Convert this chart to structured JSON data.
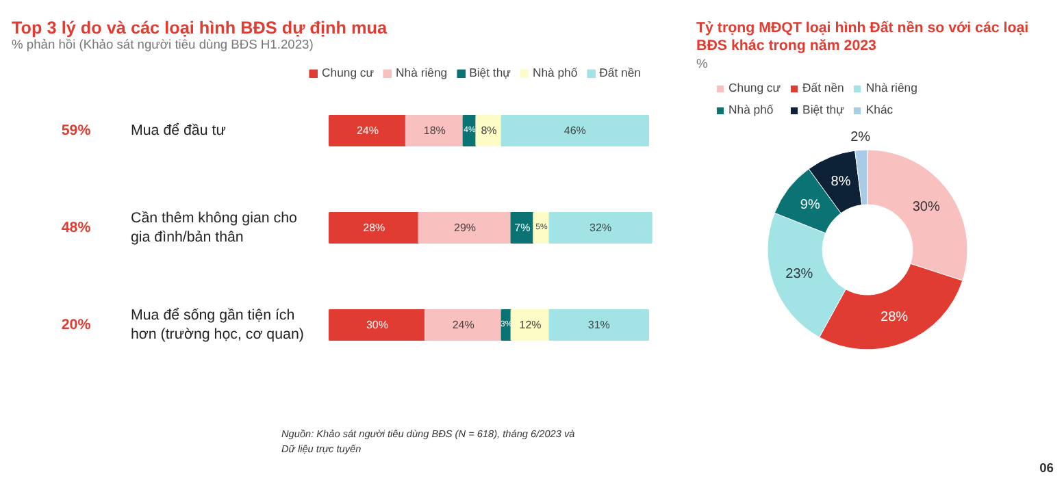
{
  "chart_data": [
    {
      "type": "bar",
      "orientation": "horizontal",
      "stacked": true,
      "title": "Top 3 lý do và các loại hình BĐS dự định mua",
      "subtitle": "% phản hồi (Khảo sát người tiêu dùng BĐS H1.2023)",
      "categories": [
        "Mua để đầu tư",
        "Cần thêm không gian cho gia đình/bản thân",
        "Mua để sống gần tiện ích hơn (trường học, cơ quan)"
      ],
      "legend": "top",
      "series": [
        {
          "name": "Chung cư",
          "color": "#e03c31",
          "values": [
            24,
            28,
            30
          ],
          "value_labels": [
            "24%",
            "28%",
            "30%"
          ]
        },
        {
          "name": "Nhà riêng",
          "color": "#f9c0c0",
          "values": [
            18,
            29,
            24
          ],
          "value_labels": [
            "18%",
            "29%",
            "24%"
          ]
        },
        {
          "name": "Biệt thự",
          "color": "#0b7373",
          "values": [
            4,
            7,
            3
          ],
          "value_labels": [
            "4%",
            "7%",
            "3%"
          ]
        },
        {
          "name": "Nhà phố",
          "color": "#fdfbc6",
          "values": [
            8,
            5,
            12
          ],
          "value_labels": [
            "8%",
            "5%",
            "12%"
          ]
        },
        {
          "name": "Đất nền",
          "color": "#a2e4e6",
          "values": [
            46,
            32,
            31
          ],
          "value_labels": [
            "46%",
            "32%",
            "31%"
          ]
        }
      ],
      "annotations": [
        "59%",
        "48%",
        "20%",
        "Nguồn: Khảo sát người tiêu dùng BĐS (N = 618), tháng 6/2023 và Dữ liệu trực tuyến"
      ]
    },
    {
      "type": "donut",
      "title": "Tỷ trọng MĐQT loại hình Đất nền so với các loại BĐS khác trong năm 2023",
      "subtitle": "%",
      "categories": [
        "Chung cư",
        "Đất nền",
        "Nhà riêng",
        "Nhà phố",
        "Biệt thự",
        "Khác"
      ],
      "values": [
        30,
        28,
        23,
        9,
        8,
        2
      ],
      "value_labels": [
        "30%",
        "28%",
        "23%",
        "9%",
        "8%",
        "2%"
      ],
      "colors": [
        "#f9c0c0",
        "#e03c31",
        "#a2e4e6",
        "#0b7373",
        "#0d2137",
        "#a8cbe6"
      ],
      "legend": "top",
      "annotations": [
        "06"
      ]
    }
  ]
}
